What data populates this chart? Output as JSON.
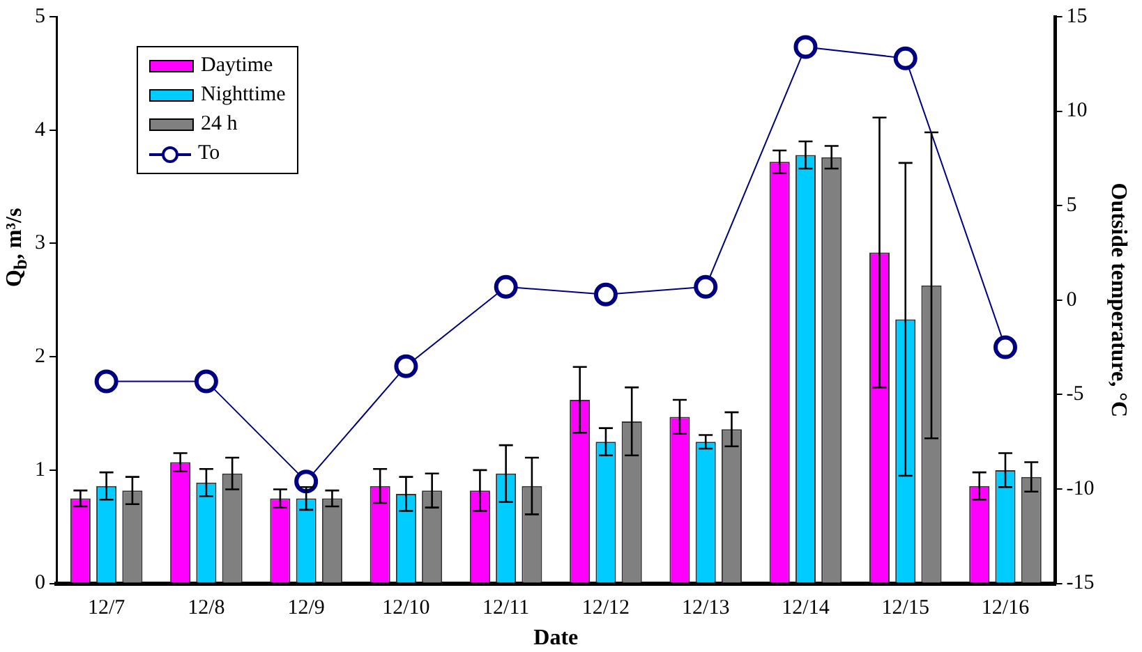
{
  "chart_data": {
    "type": "bar",
    "xlabel": "Date",
    "ylabel": "Q$_{b}$, m³/s",
    "y2label": "Outside temperature, °C",
    "categories": [
      "12/7",
      "12/8",
      "12/9",
      "12/10",
      "12/11",
      "12/12",
      "12/13",
      "12/14",
      "12/15",
      "12/16"
    ],
    "series": [
      {
        "name": "Daytime",
        "color": "#ff00ff",
        "values": [
          0.75,
          1.07,
          0.75,
          0.86,
          0.82,
          1.62,
          1.47,
          3.72,
          2.92,
          0.86
        ],
        "errors": [
          0.07,
          0.08,
          0.08,
          0.15,
          0.18,
          0.29,
          0.15,
          0.1,
          1.19,
          0.12
        ]
      },
      {
        "name": "Nighttime",
        "color": "#00ccff",
        "values": [
          0.86,
          0.89,
          0.75,
          0.79,
          0.97,
          1.25,
          1.25,
          3.78,
          2.33,
          1.0
        ],
        "errors": [
          0.12,
          0.12,
          0.1,
          0.15,
          0.25,
          0.12,
          0.06,
          0.12,
          1.38,
          0.15
        ]
      },
      {
        "name": "24 h",
        "color": "#808080",
        "values": [
          0.82,
          0.97,
          0.75,
          0.82,
          0.86,
          1.43,
          1.36,
          3.76,
          2.63,
          0.94
        ],
        "errors": [
          0.12,
          0.14,
          0.07,
          0.15,
          0.25,
          0.3,
          0.15,
          0.1,
          1.35,
          0.13
        ]
      },
      {
        "name": "To",
        "type": "line",
        "axis": "y2",
        "color": "#000080",
        "marker": "circle",
        "values": [
          -4.3,
          -4.3,
          -9.6,
          -3.5,
          0.7,
          0.3,
          0.7,
          13.4,
          12.8,
          -2.5
        ]
      }
    ],
    "ylim": [
      0,
      5
    ],
    "yticks": [
      0,
      1,
      2,
      3,
      4,
      5
    ],
    "y2lim": [
      -15,
      15
    ],
    "y2ticks": [
      -15,
      -10,
      -5,
      0,
      5,
      10,
      15
    ],
    "legend": "top left",
    "grid": false
  }
}
